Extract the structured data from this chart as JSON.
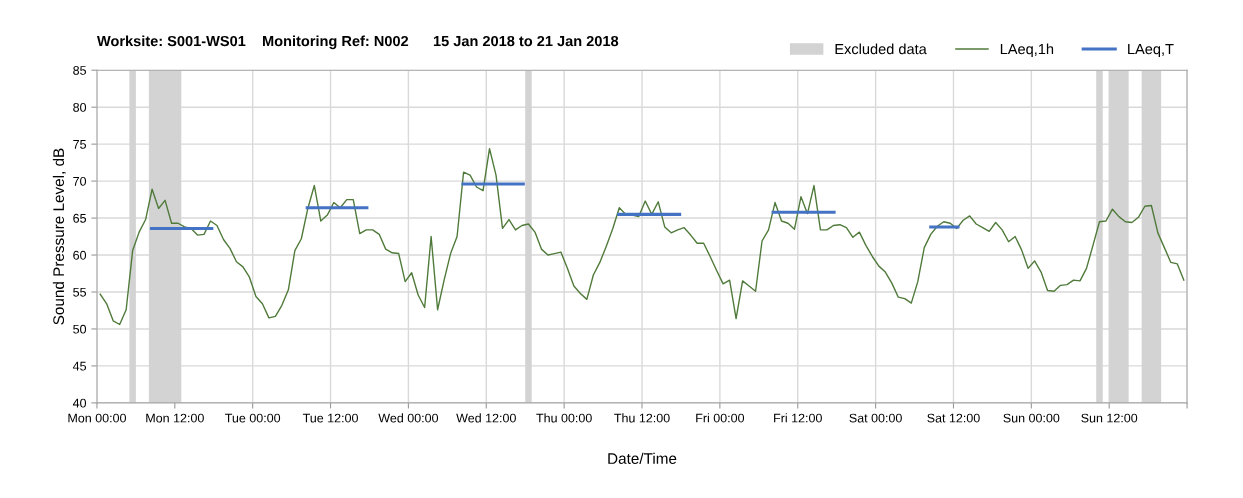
{
  "chart_data": {
    "type": "line",
    "title": "Worksite: S001-WS01    Monitoring Ref: N002      15 Jan 2018 to 21 Jan 2018",
    "xlabel": "Date/Time",
    "ylabel": "Sound Pressure Level, dB",
    "xlim": [
      "2018-01-15T00:00",
      "2018-01-22T00:00"
    ],
    "ylim": [
      40,
      85
    ],
    "xticks": [
      {
        "value": "2018-01-15T00:00",
        "label": "Mon 00:00"
      },
      {
        "value": "2018-01-15T12:00",
        "label": "Mon 12:00"
      },
      {
        "value": "2018-01-16T00:00",
        "label": "Tue 00:00"
      },
      {
        "value": "2018-01-16T12:00",
        "label": "Tue 12:00"
      },
      {
        "value": "2018-01-17T00:00",
        "label": "Wed 00:00"
      },
      {
        "value": "2018-01-17T12:00",
        "label": "Wed 12:00"
      },
      {
        "value": "2018-01-18T00:00",
        "label": "Thu 00:00"
      },
      {
        "value": "2018-01-18T12:00",
        "label": "Thu 12:00"
      },
      {
        "value": "2018-01-19T00:00",
        "label": "Fri 00:00"
      },
      {
        "value": "2018-01-19T12:00",
        "label": "Fri 12:00"
      },
      {
        "value": "2018-01-20T00:00",
        "label": "Sat 00:00"
      },
      {
        "value": "2018-01-20T12:00",
        "label": "Sat 12:00"
      },
      {
        "value": "2018-01-21T00:00",
        "label": "Sun 00:00"
      },
      {
        "value": "2018-01-21T12:00",
        "label": "Sun 12:00"
      },
      {
        "value": "2018-01-22T00:00",
        "label": null
      }
    ],
    "yticks": [
      40,
      45,
      50,
      55,
      60,
      65,
      70,
      75,
      80,
      85
    ],
    "grid": true,
    "legend": "top right",
    "bands": [
      {
        "axis": "x",
        "from": "2018-01-15T05:00",
        "to": "2018-01-15T06:00",
        "label": "Excluded data",
        "color": "#d3d3d3"
      },
      {
        "axis": "x",
        "from": "2018-01-15T08:00",
        "to": "2018-01-15T13:00",
        "color": "#d3d3d3"
      },
      {
        "axis": "x",
        "from": "2018-01-17T18:00",
        "to": "2018-01-17T19:00",
        "color": "#d3d3d3"
      },
      {
        "axis": "x",
        "from": "2018-01-21T10:00",
        "to": "2018-01-21T11:00",
        "color": "#d3d3d3"
      },
      {
        "axis": "x",
        "from": "2018-01-21T12:00",
        "to": "2018-01-21T15:00",
        "color": "#d3d3d3"
      },
      {
        "axis": "x",
        "from": "2018-01-21T17:00",
        "to": "2018-01-21T20:00",
        "color": "#d3d3d3"
      }
    ],
    "series": [
      {
        "name": "LAeq,1h",
        "color": "#4f7a3a",
        "x": [
          "2018-01-15T00:30",
          "2018-01-15T01:30",
          "2018-01-15T02:30",
          "2018-01-15T03:30",
          "2018-01-15T04:30",
          "2018-01-15T05:30",
          "2018-01-15T06:30",
          "2018-01-15T07:30",
          "2018-01-15T08:30",
          "2018-01-15T09:30",
          "2018-01-15T10:30",
          "2018-01-15T11:30",
          "2018-01-15T12:30",
          "2018-01-15T13:30",
          "2018-01-15T14:30",
          "2018-01-15T15:30",
          "2018-01-15T16:30",
          "2018-01-15T17:30",
          "2018-01-15T18:30",
          "2018-01-15T19:30",
          "2018-01-15T20:30",
          "2018-01-15T21:30",
          "2018-01-15T22:30",
          "2018-01-15T23:30",
          "2018-01-16T00:30",
          "2018-01-16T01:30",
          "2018-01-16T02:30",
          "2018-01-16T03:30",
          "2018-01-16T04:30",
          "2018-01-16T05:30",
          "2018-01-16T06:30",
          "2018-01-16T07:30",
          "2018-01-16T08:30",
          "2018-01-16T09:30",
          "2018-01-16T10:30",
          "2018-01-16T11:30",
          "2018-01-16T12:30",
          "2018-01-16T13:30",
          "2018-01-16T14:30",
          "2018-01-16T15:30",
          "2018-01-16T16:30",
          "2018-01-16T17:30",
          "2018-01-16T18:30",
          "2018-01-16T19:30",
          "2018-01-16T20:30",
          "2018-01-16T21:30",
          "2018-01-16T22:30",
          "2018-01-16T23:30",
          "2018-01-17T00:30",
          "2018-01-17T01:30",
          "2018-01-17T02:30",
          "2018-01-17T03:30",
          "2018-01-17T04:30",
          "2018-01-17T05:30",
          "2018-01-17T06:30",
          "2018-01-17T07:30",
          "2018-01-17T08:30",
          "2018-01-17T09:30",
          "2018-01-17T10:30",
          "2018-01-17T11:30",
          "2018-01-17T12:30",
          "2018-01-17T13:30",
          "2018-01-17T14:30",
          "2018-01-17T15:30",
          "2018-01-17T16:30",
          "2018-01-17T17:30",
          "2018-01-17T18:30",
          "2018-01-17T19:30",
          "2018-01-17T20:30",
          "2018-01-17T21:30",
          "2018-01-17T22:30",
          "2018-01-17T23:30",
          "2018-01-18T00:30",
          "2018-01-18T01:30",
          "2018-01-18T02:30",
          "2018-01-18T03:30",
          "2018-01-18T04:30",
          "2018-01-18T05:30",
          "2018-01-18T06:30",
          "2018-01-18T07:30",
          "2018-01-18T08:30",
          "2018-01-18T09:30",
          "2018-01-18T10:30",
          "2018-01-18T11:30",
          "2018-01-18T12:30",
          "2018-01-18T13:30",
          "2018-01-18T14:30",
          "2018-01-18T15:30",
          "2018-01-18T16:30",
          "2018-01-18T17:30",
          "2018-01-18T18:30",
          "2018-01-18T19:30",
          "2018-01-18T20:30",
          "2018-01-18T21:30",
          "2018-01-18T22:30",
          "2018-01-18T23:30",
          "2018-01-19T00:30",
          "2018-01-19T01:30",
          "2018-01-19T02:30",
          "2018-01-19T03:30",
          "2018-01-19T04:30",
          "2018-01-19T05:30",
          "2018-01-19T06:30",
          "2018-01-19T07:30",
          "2018-01-19T08:30",
          "2018-01-19T09:30",
          "2018-01-19T10:30",
          "2018-01-19T11:30",
          "2018-01-19T12:30",
          "2018-01-19T13:30",
          "2018-01-19T14:30",
          "2018-01-19T15:30",
          "2018-01-19T16:30",
          "2018-01-19T17:30",
          "2018-01-19T18:30",
          "2018-01-19T19:30",
          "2018-01-19T20:30",
          "2018-01-19T21:30",
          "2018-01-19T22:30",
          "2018-01-19T23:30",
          "2018-01-20T00:30",
          "2018-01-20T01:30",
          "2018-01-20T02:30",
          "2018-01-20T03:30",
          "2018-01-20T04:30",
          "2018-01-20T05:30",
          "2018-01-20T06:30",
          "2018-01-20T07:30",
          "2018-01-20T08:30",
          "2018-01-20T09:30",
          "2018-01-20T10:30",
          "2018-01-20T11:30",
          "2018-01-20T12:30",
          "2018-01-20T13:30",
          "2018-01-20T14:30",
          "2018-01-20T15:30",
          "2018-01-20T16:30",
          "2018-01-20T17:30",
          "2018-01-20T18:30",
          "2018-01-20T19:30",
          "2018-01-20T20:30",
          "2018-01-20T21:30",
          "2018-01-20T22:30",
          "2018-01-20T23:30",
          "2018-01-21T00:30",
          "2018-01-21T01:30",
          "2018-01-21T02:30",
          "2018-01-21T03:30",
          "2018-01-21T04:30",
          "2018-01-21T05:30",
          "2018-01-21T06:30",
          "2018-01-21T07:30",
          "2018-01-21T08:30",
          "2018-01-21T09:30",
          "2018-01-21T10:30",
          "2018-01-21T11:30",
          "2018-01-21T12:30",
          "2018-01-21T13:30",
          "2018-01-21T14:30",
          "2018-01-21T15:30",
          "2018-01-21T16:30",
          "2018-01-21T17:30",
          "2018-01-21T18:30",
          "2018-01-21T19:30",
          "2018-01-21T20:30",
          "2018-01-21T21:30",
          "2018-01-21T22:30",
          "2018-01-21T23:30"
        ],
        "values": [
          54.7,
          53.4,
          51.1,
          50.6,
          52.6,
          60.6,
          63.1,
          64.8,
          68.9,
          66.3,
          67.4,
          64.3,
          64.3,
          63.8,
          63.6,
          62.7,
          62.8,
          64.6,
          64.0,
          62.1,
          60.9,
          59.1,
          58.4,
          57.0,
          54.4,
          53.4,
          51.5,
          51.7,
          53.2,
          55.3,
          60.6,
          62.2,
          66.3,
          69.4,
          64.6,
          65.4,
          67.1,
          66.4,
          67.5,
          67.5,
          62.9,
          63.4,
          63.4,
          62.8,
          60.8,
          60.3,
          60.2,
          56.4,
          57.6,
          54.6,
          52.9,
          62.5,
          52.6,
          56.6,
          60.2,
          62.5,
          71.2,
          70.8,
          69.2,
          68.7,
          74.4,
          70.8,
          63.6,
          64.8,
          63.4,
          64.0,
          64.2,
          63.1,
          60.8,
          60.0,
          60.2,
          60.4,
          58.2,
          55.8,
          54.8,
          54.0,
          57.3,
          59.0,
          61.2,
          63.6,
          66.4,
          65.5,
          65.4,
          65.2,
          67.3,
          65.5,
          67.2,
          63.8,
          63.0,
          63.4,
          63.7,
          62.7,
          61.6,
          61.6,
          59.8,
          57.9,
          56.1,
          56.6,
          51.4,
          56.5,
          55.8,
          55.1,
          61.9,
          63.4,
          67.1,
          64.6,
          64.3,
          63.5,
          67.9,
          65.6,
          69.4,
          63.4,
          63.4,
          64.0,
          64.1,
          63.7,
          62.4,
          63.1,
          61.3,
          59.8,
          58.5,
          57.7,
          56.2,
          54.3,
          54.1,
          53.5,
          56.4,
          61.0,
          62.8,
          63.9,
          64.5,
          64.3,
          63.6,
          64.7,
          65.3,
          64.2,
          63.7,
          63.2,
          64.4,
          63.4,
          61.8,
          62.5,
          60.7,
          58.2,
          59.2,
          57.7,
          55.2,
          55.1,
          55.9,
          56.0,
          56.6,
          56.5,
          58.2,
          61.3,
          64.5,
          64.6,
          66.2,
          65.2,
          64.5,
          64.4,
          65.1,
          66.6,
          66.7,
          63.0,
          61.0,
          59.0,
          58.8,
          56.6
        ]
      },
      {
        "name": "LAeq,T",
        "color": "#4472c4",
        "x": [
          "2018-01-15T08:24",
          "2018-01-15T17:42",
          "2018-01-16T01:00",
          "2018-01-16T08:24",
          "2018-01-16T17:36",
          "2018-01-17T01:00",
          "2018-01-17T08:24",
          "2018-01-17T17:42",
          "2018-01-18T01:00",
          "2018-01-18T08:24",
          "2018-01-18T17:48",
          "2018-01-19T01:00",
          "2018-01-19T08:12",
          "2018-01-19T17:36",
          "2018-01-20T01:00",
          "2018-01-20T08:30",
          "2018-01-20T12:42"
        ],
        "values": [
          63.6,
          63.6,
          null,
          66.4,
          66.4,
          null,
          69.6,
          69.6,
          null,
          65.5,
          65.5,
          null,
          65.8,
          65.8,
          null,
          63.8,
          63.8
        ]
      }
    ]
  }
}
